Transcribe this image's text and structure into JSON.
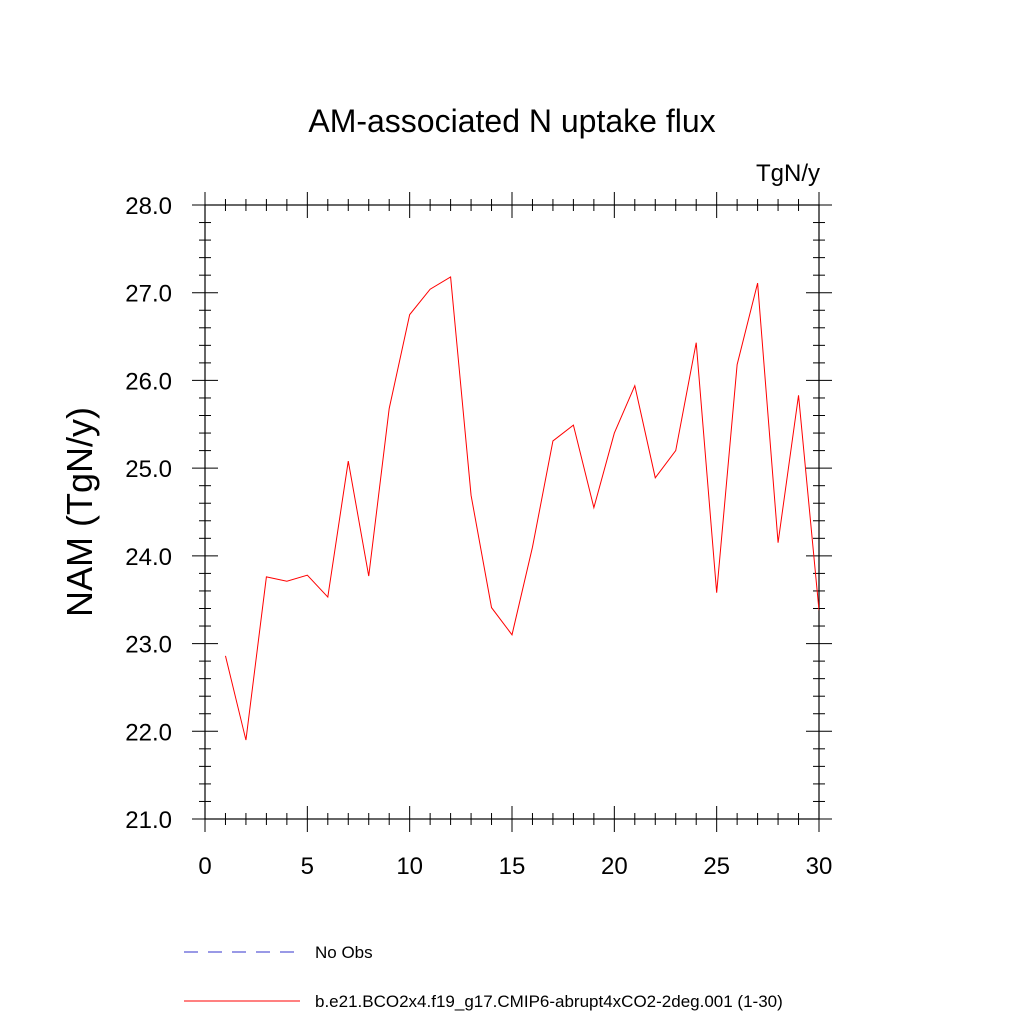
{
  "chart_data": {
    "type": "line",
    "title": "AM-associated N uptake flux",
    "units_label": "TgN/y",
    "ylabel": "NAM  (TgN/y)",
    "xlabel": "",
    "xlim": [
      0,
      30
    ],
    "ylim": [
      21.0,
      28.0
    ],
    "xticks": [
      0,
      5,
      10,
      15,
      20,
      25,
      30
    ],
    "xtick_labels": [
      "0",
      "5",
      "10",
      "15",
      "20",
      "25",
      "30"
    ],
    "yticks": [
      21.0,
      22.0,
      23.0,
      24.0,
      25.0,
      26.0,
      27.0,
      28.0
    ],
    "ytick_labels": [
      "21.0",
      "22.0",
      "23.0",
      "24.0",
      "25.0",
      "26.0",
      "27.0",
      "28.0"
    ],
    "grid": false,
    "legend_position": "bottom",
    "series": [
      {
        "name": "b.e21.BCO2x4.f19_g17.CMIP6-abrupt4xCO2-2deg.001 (1-30)",
        "color": "#ff0000",
        "style": "solid",
        "x": [
          1,
          2,
          3,
          4,
          5,
          6,
          7,
          8,
          9,
          10,
          11,
          12,
          13,
          14,
          15,
          16,
          17,
          18,
          19,
          20,
          21,
          22,
          23,
          24,
          25,
          26,
          27,
          28,
          29,
          30
        ],
        "y": [
          22.86,
          21.9,
          23.76,
          23.71,
          23.78,
          23.53,
          25.08,
          23.77,
          25.68,
          26.75,
          27.04,
          27.18,
          24.69,
          23.41,
          23.1,
          24.1,
          25.31,
          25.49,
          24.55,
          25.4,
          25.94,
          24.89,
          25.2,
          26.43,
          23.58,
          26.18,
          27.11,
          24.15,
          25.83,
          23.38
        ]
      }
    ],
    "legend": [
      {
        "label": "No Obs",
        "color": "#3333cc",
        "style": "dashed"
      },
      {
        "label": "b.e21.BCO2x4.f19_g17.CMIP6-abrupt4xCO2-2deg.001 (1-30)",
        "color": "#ff0000",
        "style": "solid"
      }
    ]
  }
}
